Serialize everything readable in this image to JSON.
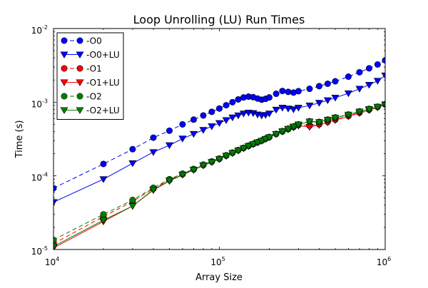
{
  "chart_data": {
    "type": "line",
    "title": "Loop Unrolling (LU) Run Times",
    "xlabel": "Array Size",
    "ylabel": "Time (s)",
    "xscale": "log",
    "yscale": "log",
    "xlim": [
      10000,
      1000000
    ],
    "ylim": [
      1e-05,
      0.01
    ],
    "x_ticks": [
      {
        "base": "10",
        "exp": "4",
        "value": 10000
      },
      {
        "base": "10",
        "exp": "5",
        "value": 100000
      },
      {
        "base": "10",
        "exp": "6",
        "value": 1000000
      }
    ],
    "y_ticks": [
      {
        "base": "10",
        "exp": "-5",
        "value": 1e-05
      },
      {
        "base": "10",
        "exp": "-4",
        "value": 0.0001
      },
      {
        "base": "10",
        "exp": "-3",
        "value": 0.001
      },
      {
        "base": "10",
        "exp": "-2",
        "value": 0.01
      }
    ],
    "grid": false,
    "legend_position": "upper-left",
    "series": [
      {
        "name": "-O0",
        "color": "#0000ff",
        "marker": "circle",
        "line_style": "dashed",
        "x": [
          10000,
          20000,
          30000,
          40000,
          50000,
          60000,
          70000,
          80000,
          90000,
          100000,
          110000,
          120000,
          130000,
          140000,
          150000,
          160000,
          170000,
          180000,
          190000,
          200000,
          220000,
          240000,
          260000,
          280000,
          300000,
          350000,
          400000,
          450000,
          500000,
          600000,
          700000,
          800000,
          900000,
          1000000
        ],
        "y": [
          6.8e-05,
          0.000145,
          0.00023,
          0.00033,
          0.00041,
          0.0005,
          0.00058,
          0.00066,
          0.00074,
          0.00082,
          0.00091,
          0.001,
          0.00109,
          0.00116,
          0.00119,
          0.00117,
          0.00112,
          0.00108,
          0.00111,
          0.00116,
          0.0013,
          0.00142,
          0.00138,
          0.00135,
          0.00141,
          0.00152,
          0.00165,
          0.00178,
          0.00192,
          0.00222,
          0.00255,
          0.00288,
          0.00325,
          0.0037
        ]
      },
      {
        "name": "-O0+LU",
        "color": "#0000ff",
        "marker": "triangle-down",
        "line_style": "solid",
        "x": [
          10000,
          20000,
          30000,
          40000,
          50000,
          60000,
          70000,
          80000,
          90000,
          100000,
          110000,
          120000,
          130000,
          140000,
          150000,
          160000,
          170000,
          180000,
          190000,
          200000,
          220000,
          240000,
          260000,
          280000,
          300000,
          350000,
          400000,
          450000,
          500000,
          600000,
          700000,
          800000,
          900000,
          1000000
        ],
        "y": [
          4.4e-05,
          9e-05,
          0.000148,
          0.00021,
          0.00026,
          0.00032,
          0.00037,
          0.00042,
          0.00047,
          0.00052,
          0.00057,
          0.00062,
          0.00066,
          0.0007,
          0.00072,
          0.00071,
          0.00068,
          0.00066,
          0.00067,
          0.0007,
          0.00079,
          0.00084,
          0.00082,
          0.0008,
          0.00084,
          0.0009,
          0.00098,
          0.00106,
          0.00115,
          0.00132,
          0.00152,
          0.00172,
          0.00195,
          0.0023
        ]
      },
      {
        "name": "-O1",
        "color": "#ff0000",
        "marker": "circle",
        "line_style": "dashed",
        "x": [
          10000,
          20000,
          30000,
          40000,
          50000,
          60000,
          70000,
          80000,
          90000,
          100000,
          110000,
          120000,
          130000,
          140000,
          150000,
          160000,
          170000,
          180000,
          190000,
          200000,
          220000,
          240000,
          260000,
          280000,
          300000,
          350000,
          400000,
          450000,
          500000,
          600000,
          700000,
          800000,
          900000,
          1000000
        ],
        "y": [
          1.2e-05,
          2.8e-05,
          4.5e-05,
          6.7e-05,
          8.8e-05,
          0.000105,
          0.000122,
          0.00014,
          0.000155,
          0.00017,
          0.000188,
          0.000205,
          0.000222,
          0.000238,
          0.000255,
          0.00027,
          0.000285,
          0.0003,
          0.000318,
          0.000335,
          0.00037,
          0.0004,
          0.00043,
          0.00046,
          0.00049,
          0.00048,
          0.0005,
          0.00054,
          0.00058,
          0.00065,
          0.00072,
          0.00079,
          0.00086,
          0.00093
        ]
      },
      {
        "name": "-O1+LU",
        "color": "#ff0000",
        "marker": "triangle-down",
        "line_style": "solid",
        "x": [
          10000,
          20000,
          30000,
          40000,
          50000,
          60000,
          70000,
          80000,
          90000,
          100000,
          110000,
          120000,
          130000,
          140000,
          150000,
          160000,
          170000,
          180000,
          190000,
          200000,
          220000,
          240000,
          260000,
          280000,
          300000,
          350000,
          400000,
          450000,
          500000,
          600000,
          700000,
          800000,
          900000,
          1000000
        ],
        "y": [
          1.05e-05,
          2.4e-05,
          3.9e-05,
          6.4e-05,
          8.5e-05,
          0.000103,
          0.00012,
          0.000138,
          0.000153,
          0.000168,
          0.000186,
          0.000203,
          0.00022,
          0.000236,
          0.000253,
          0.000268,
          0.000283,
          0.000298,
          0.000316,
          0.000333,
          0.000368,
          0.000398,
          0.000428,
          0.000455,
          0.00048,
          0.00046,
          0.00049,
          0.00053,
          0.00057,
          0.00064,
          0.00071,
          0.00078,
          0.00085,
          0.00092
        ]
      },
      {
        "name": "-O2",
        "color": "#008000",
        "marker": "circle",
        "line_style": "dashed",
        "x": [
          10000,
          20000,
          30000,
          40000,
          50000,
          60000,
          70000,
          80000,
          90000,
          100000,
          110000,
          120000,
          130000,
          140000,
          150000,
          160000,
          170000,
          180000,
          190000,
          200000,
          220000,
          240000,
          260000,
          280000,
          300000,
          350000,
          400000,
          450000,
          500000,
          600000,
          700000,
          800000,
          900000,
          1000000
        ],
        "y": [
          1.35e-05,
          3e-05,
          4.7e-05,
          6.9e-05,
          9e-05,
          0.000107,
          0.000124,
          0.000142,
          0.000157,
          0.000172,
          0.00019,
          0.000207,
          0.000224,
          0.00024,
          0.000257,
          0.000272,
          0.000287,
          0.000302,
          0.00032,
          0.000337,
          0.000372,
          0.000405,
          0.000437,
          0.000468,
          0.0005,
          0.00055,
          0.00054,
          0.00058,
          0.00062,
          0.00068,
          0.00075,
          0.00081,
          0.00087,
          0.00094
        ]
      },
      {
        "name": "-O2+LU",
        "color": "#008000",
        "marker": "triangle-down",
        "line_style": "solid",
        "x": [
          10000,
          20000,
          30000,
          40000,
          50000,
          60000,
          70000,
          80000,
          90000,
          100000,
          110000,
          120000,
          130000,
          140000,
          150000,
          160000,
          170000,
          180000,
          190000,
          200000,
          220000,
          240000,
          260000,
          280000,
          300000,
          350000,
          400000,
          450000,
          500000,
          600000,
          700000,
          800000,
          900000,
          1000000
        ],
        "y": [
          1.1e-05,
          2.5e-05,
          3.9e-05,
          6.5e-05,
          8.6e-05,
          0.000104,
          0.000121,
          0.000139,
          0.000154,
          0.000169,
          0.000187,
          0.000204,
          0.000221,
          0.000237,
          0.000254,
          0.000269,
          0.000284,
          0.000299,
          0.000317,
          0.000334,
          0.000369,
          0.000402,
          0.000434,
          0.000465,
          0.000497,
          0.000545,
          0.000535,
          0.000575,
          0.000615,
          0.000675,
          0.000745,
          0.000805,
          0.000865,
          0.00093
        ]
      }
    ]
  }
}
